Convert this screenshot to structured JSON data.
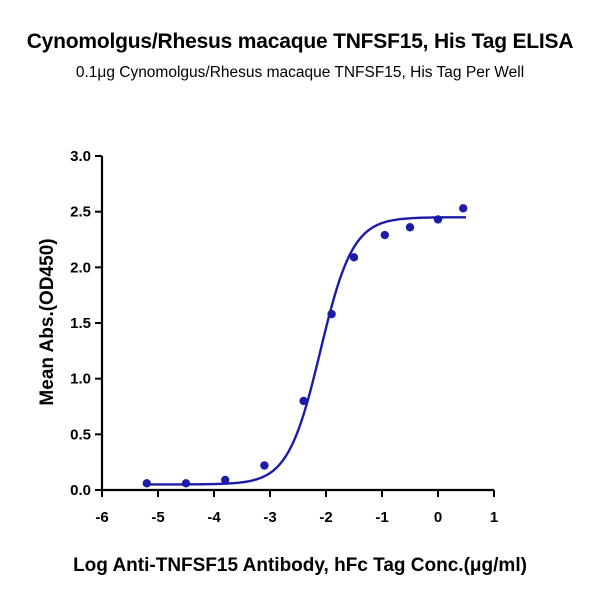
{
  "title": "Cynomolgus/Rhesus macaque TNFSF15, His Tag ELISA",
  "subtitle": "0.1μg Cynomolgus/Rhesus macaque TNFSF15, His Tag Per Well",
  "colors": {
    "series": "#1c1ca8",
    "axis": "#000000"
  },
  "chart_data": {
    "type": "scatter",
    "title": "Cynomolgus/Rhesus macaque TNFSF15, His Tag ELISA",
    "subtitle": "0.1μg Cynomolgus/Rhesus macaque TNFSF15, His Tag Per Well",
    "xlabel": "Log Anti-TNFSF15 Antibody, hFc Tag Conc.(μg/ml)",
    "ylabel": "Mean Abs.(OD450)",
    "xlim": [
      -6,
      1
    ],
    "ylim": [
      0,
      3
    ],
    "x_ticks": [
      "-6",
      "-5",
      "-4",
      "-3",
      "-2",
      "-1",
      "0",
      "1"
    ],
    "y_ticks": [
      "0.0",
      "0.5",
      "1.0",
      "1.5",
      "2.0",
      "2.5",
      "3.0"
    ],
    "grid": false,
    "series": [
      {
        "points": [
          {
            "x": -5.2,
            "y": 0.06
          },
          {
            "x": -4.5,
            "y": 0.06
          },
          {
            "x": -3.8,
            "y": 0.09
          },
          {
            "x": -3.1,
            "y": 0.22
          },
          {
            "x": -2.4,
            "y": 0.8
          },
          {
            "x": -1.9,
            "y": 1.58
          },
          {
            "x": -1.5,
            "y": 2.09
          },
          {
            "x": -0.95,
            "y": 2.29
          },
          {
            "x": -0.5,
            "y": 2.36
          },
          {
            "x": 0.0,
            "y": 2.43
          },
          {
            "x": 0.45,
            "y": 2.53
          }
        ],
        "fit": {
          "model": "4-parameter logistic",
          "bottom": 0.05,
          "top": 2.45,
          "log_ec50": -2.1,
          "hill_slope": 1.5,
          "x_range": [
            -5.2,
            0.5
          ]
        }
      }
    ]
  }
}
